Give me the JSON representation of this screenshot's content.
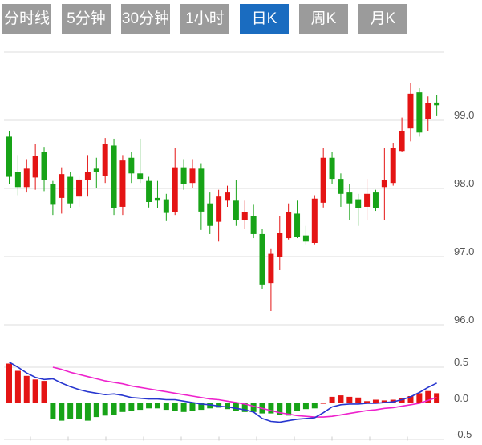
{
  "tabs": [
    {
      "label": "分时线",
      "active": false
    },
    {
      "label": "5分钟",
      "active": false
    },
    {
      "label": "30分钟",
      "active": false
    },
    {
      "label": "1小时",
      "active": false
    },
    {
      "label": "日K",
      "active": true
    },
    {
      "label": "周K",
      "active": false
    },
    {
      "label": "月K",
      "active": false
    }
  ],
  "colors": {
    "up": "#e41414",
    "down": "#17a317",
    "dif_line": "#2736cf",
    "dea_line": "#ee22cc",
    "tab_bg": "#9b9b9b",
    "tab_active_bg": "#1a6cc0",
    "tab_text": "#ffffff",
    "gridline": "#dddddd",
    "axis_text": "#555555"
  },
  "chart_data": {
    "type": "candlestick",
    "convention": "red = up candle / positive MACD, green = down candle / negative MACD",
    "price_panel": {
      "gridline_values": [
        100.0,
        99.0,
        98.0,
        97.0,
        96.0
      ],
      "axis_labels": [
        {
          "text": "99.0",
          "value": 99.0
        },
        {
          "text": "98.0",
          "value": 98.0
        },
        {
          "text": "97.0",
          "value": 97.0
        },
        {
          "text": "96.0",
          "value": 96.0
        }
      ],
      "candles_ohlc": [
        [
          98.76,
          98.84,
          98.07,
          98.17
        ],
        [
          98.24,
          98.49,
          97.9,
          98.02
        ],
        [
          98.02,
          98.43,
          97.94,
          98.29
        ],
        [
          98.16,
          98.65,
          97.98,
          98.48
        ],
        [
          98.53,
          98.61,
          97.96,
          98.12
        ],
        [
          98.07,
          98.11,
          97.61,
          97.76
        ],
        [
          97.86,
          98.31,
          97.63,
          98.21
        ],
        [
          98.17,
          98.24,
          97.71,
          97.78
        ],
        [
          97.88,
          98.19,
          97.73,
          98.13
        ],
        [
          98.12,
          98.49,
          97.88,
          98.24
        ],
        [
          98.29,
          98.45,
          98.0,
          98.24
        ],
        [
          98.18,
          98.74,
          98.08,
          98.65
        ],
        [
          98.63,
          98.73,
          97.61,
          97.71
        ],
        [
          97.73,
          98.49,
          97.61,
          98.41
        ],
        [
          98.45,
          98.53,
          98.08,
          98.22
        ],
        [
          98.22,
          98.73,
          98.08,
          98.14
        ],
        [
          98.11,
          98.17,
          97.72,
          97.8
        ],
        [
          97.86,
          98.11,
          97.71,
          97.82
        ],
        [
          97.84,
          97.92,
          97.52,
          97.64
        ],
        [
          97.65,
          98.59,
          97.61,
          98.31
        ],
        [
          98.31,
          98.43,
          97.98,
          98.07
        ],
        [
          98.08,
          98.43,
          98.0,
          98.29
        ],
        [
          98.29,
          98.37,
          97.39,
          97.66
        ],
        [
          97.78,
          97.94,
          97.33,
          97.45
        ],
        [
          97.51,
          97.98,
          97.22,
          97.88
        ],
        [
          97.82,
          98.04,
          97.73,
          97.94
        ],
        [
          97.82,
          98.12,
          97.45,
          97.54
        ],
        [
          97.53,
          97.82,
          97.41,
          97.65
        ],
        [
          97.59,
          97.76,
          97.27,
          97.33
        ],
        [
          97.33,
          97.41,
          96.53,
          96.59
        ],
        [
          96.61,
          97.12,
          96.2,
          97.04
        ],
        [
          97.0,
          97.59,
          96.8,
          97.35
        ],
        [
          97.27,
          97.78,
          97.25,
          97.65
        ],
        [
          97.63,
          97.82,
          97.27,
          97.29
        ],
        [
          97.31,
          97.45,
          97.18,
          97.22
        ],
        [
          97.2,
          97.9,
          97.18,
          97.85
        ],
        [
          97.79,
          98.59,
          97.72,
          98.45
        ],
        [
          98.45,
          98.53,
          98.06,
          98.14
        ],
        [
          98.14,
          98.22,
          97.73,
          97.92
        ],
        [
          97.94,
          98.06,
          97.53,
          97.78
        ],
        [
          97.84,
          97.92,
          97.45,
          97.71
        ],
        [
          97.73,
          98.14,
          97.53,
          97.92
        ],
        [
          97.94,
          97.98,
          97.67,
          97.71
        ],
        [
          98.02,
          98.59,
          97.53,
          98.12
        ],
        [
          98.08,
          98.67,
          98.04,
          98.59
        ],
        [
          98.55,
          99.04,
          98.53,
          98.84
        ],
        [
          98.88,
          99.55,
          98.69,
          99.39
        ],
        [
          99.41,
          99.47,
          98.76,
          98.82
        ],
        [
          99.02,
          99.35,
          98.84,
          99.25
        ],
        [
          99.26,
          99.37,
          99.06,
          99.22
        ]
      ]
    },
    "macd_panel": {
      "gridline_values": [
        0.5,
        -0.5
      ],
      "axis_labels": [
        {
          "text": "0.5",
          "value": 0.5
        },
        {
          "text": "0.0",
          "value": 0.0
        },
        {
          "text": "-0.5",
          "value": -0.5
        }
      ],
      "histogram": [
        0.55,
        0.45,
        0.38,
        0.33,
        0.31,
        -0.22,
        -0.24,
        -0.22,
        -0.22,
        -0.24,
        -0.19,
        -0.17,
        -0.16,
        -0.12,
        -0.1,
        -0.09,
        -0.07,
        -0.07,
        -0.09,
        -0.1,
        -0.12,
        -0.1,
        -0.09,
        -0.07,
        -0.06,
        -0.08,
        -0.1,
        -0.12,
        -0.12,
        -0.14,
        -0.14,
        -0.16,
        -0.17,
        -0.1,
        -0.08,
        -0.07,
        0.01,
        0.09,
        0.11,
        0.09,
        0.08,
        0.03,
        0.05,
        0.04,
        0.05,
        0.07,
        0.1,
        0.14,
        0.17,
        0.14
      ],
      "dif_line": [
        0.57,
        0.5,
        0.42,
        0.36,
        0.33,
        0.34,
        0.28,
        0.23,
        0.19,
        0.16,
        0.14,
        0.12,
        0.13,
        0.11,
        0.08,
        0.07,
        0.06,
        0.06,
        0.05,
        0.05,
        0.03,
        0.01,
        -0.01,
        -0.02,
        -0.04,
        -0.05,
        -0.07,
        -0.09,
        -0.12,
        -0.21,
        -0.25,
        -0.26,
        -0.24,
        -0.22,
        -0.21,
        -0.2,
        -0.13,
        -0.05,
        -0.02,
        -0.01,
        -0.01,
        0.0,
        0.0,
        0.01,
        0.02,
        0.05,
        0.09,
        0.15,
        0.22,
        0.28
      ],
      "dea_line": [
        null,
        null,
        null,
        null,
        null,
        0.5,
        0.47,
        0.43,
        0.4,
        0.37,
        0.34,
        0.31,
        0.29,
        0.27,
        0.24,
        0.22,
        0.2,
        0.18,
        0.16,
        0.14,
        0.12,
        0.1,
        0.08,
        0.06,
        0.05,
        0.03,
        0.01,
        -0.01,
        -0.04,
        -0.07,
        -0.1,
        -0.13,
        -0.15,
        -0.17,
        -0.18,
        -0.19,
        -0.19,
        -0.18,
        -0.16,
        -0.14,
        -0.12,
        -0.1,
        -0.09,
        -0.07,
        -0.06,
        -0.04,
        -0.02,
        0.0,
        0.04,
        0.08
      ]
    }
  }
}
